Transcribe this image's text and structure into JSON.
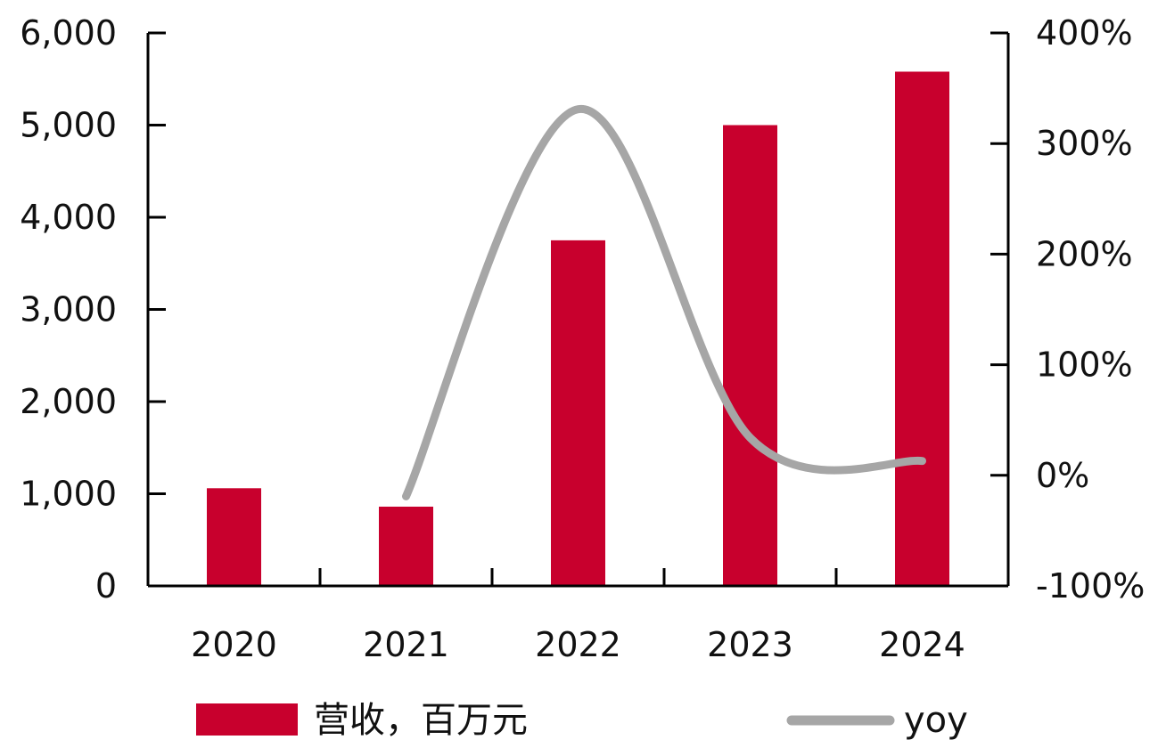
{
  "chart_data": {
    "type": "bar",
    "title": "",
    "xlabel": "",
    "ylabel": "",
    "categories": [
      "2020",
      "2021",
      "2022",
      "2023",
      "2024"
    ],
    "series": [
      {
        "name": "营收，百万元",
        "type": "bar",
        "axis": "left",
        "color": "#c8002d",
        "values": [
          1060,
          860,
          3750,
          5000,
          5580
        ]
      },
      {
        "name": "yoy",
        "type": "line",
        "axis": "right",
        "color": "#a6a6a6",
        "smooth": true,
        "values": [
          null,
          -19,
          331,
          34,
          13
        ]
      }
    ],
    "y_left": {
      "min": 0,
      "max": 6000,
      "ticks": [
        0,
        1000,
        2000,
        3000,
        4000,
        5000,
        6000
      ],
      "tick_labels": [
        "0",
        "1,000",
        "2,000",
        "3,000",
        "4,000",
        "5,000",
        "6,000"
      ]
    },
    "y_right": {
      "min": -100,
      "max": 400,
      "ticks": [
        -100,
        0,
        100,
        200,
        300,
        400
      ],
      "tick_labels": [
        "-100%",
        "0%",
        "100%",
        "200%",
        "300%",
        "400%"
      ]
    },
    "grid": false,
    "legend": {
      "position": "bottom",
      "entries": [
        "营收，百万元",
        "yoy"
      ]
    }
  }
}
